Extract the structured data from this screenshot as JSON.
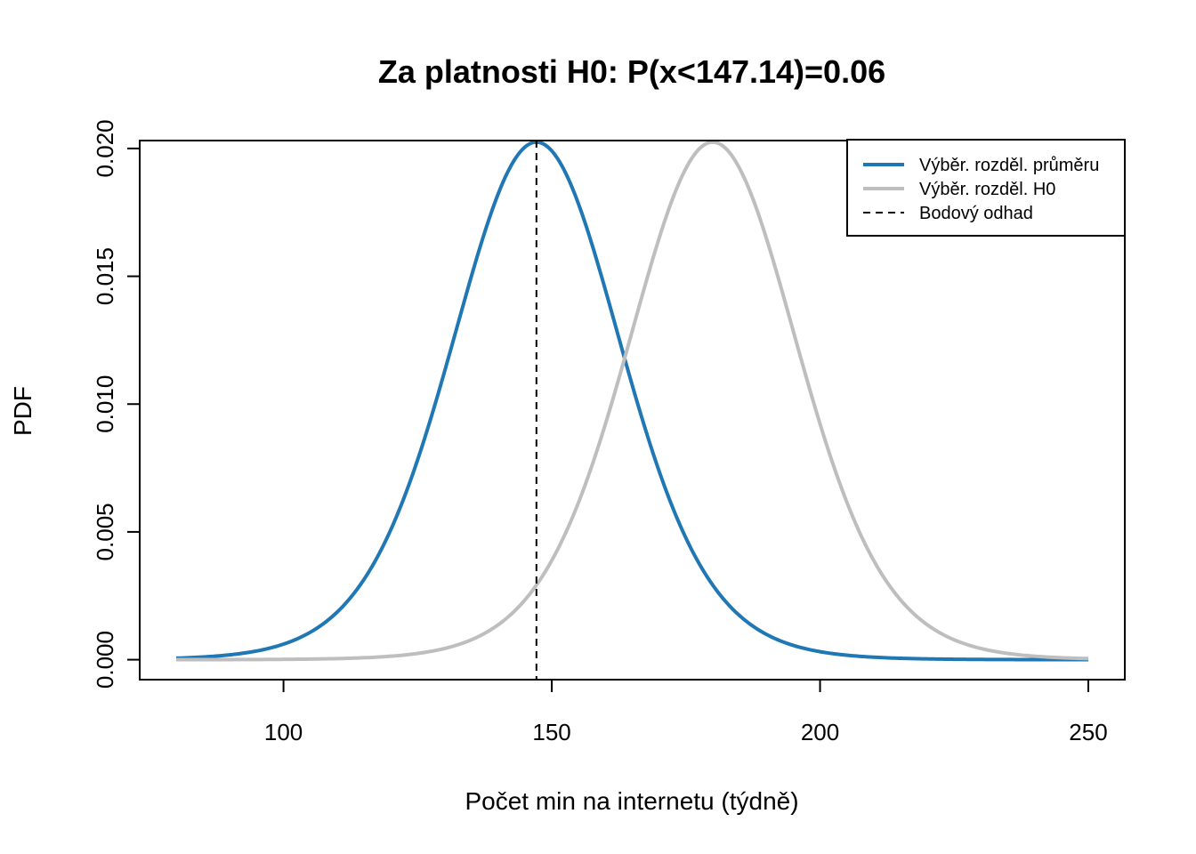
{
  "chart_data": {
    "type": "line",
    "title": "Za platnosti H0: P(x<147.14)=0.06",
    "xlabel": "Počet min na internetu (týdně)",
    "ylabel": "PDF",
    "xlim": [
      73.2,
      256.8
    ],
    "ylim": [
      -0.00078,
      0.02031
    ],
    "x_ticks": [
      100,
      150,
      200,
      250
    ],
    "x_tick_labels": [
      "100",
      "150",
      "200",
      "250"
    ],
    "y_ticks": [
      0.0,
      0.005,
      0.01,
      0.015,
      0.02
    ],
    "y_tick_labels": [
      "0.000",
      "0.005",
      "0.010",
      "0.015",
      "0.020"
    ],
    "grid": false,
    "legend_position": "top-right",
    "series": [
      {
        "name": "Výběr. rozděl. průměru",
        "color": "#1f77b4",
        "style": "solid",
        "curve": {
          "mean": 147.14,
          "scale": 16.1,
          "df": 12,
          "peak": 0.02025
        },
        "x_range": [
          80,
          250
        ]
      },
      {
        "name": "Výběr. rozděl. H0",
        "color": "#bebebe",
        "style": "solid",
        "curve": {
          "mean": 180,
          "scale": 16.1,
          "df": 12,
          "peak": 0.02025
        },
        "x_range": [
          80,
          250
        ]
      },
      {
        "name": "Bodový odhad",
        "color": "#000000",
        "style": "dashed",
        "x": 147.14
      }
    ]
  }
}
